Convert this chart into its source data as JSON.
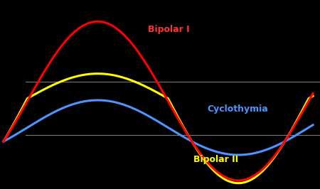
{
  "background_color": "#000000",
  "line_bipolar1_color": "#ff0000",
  "line_bipolar2_color": "#ffff00",
  "line_cyclothymia_color": "#4d94ff",
  "hline_color": "#999999",
  "label_bipolar1": "Bipolar I",
  "label_bipolar2": "Bipolar II",
  "label_cyclothymia": "Cyclothymia",
  "label_bipolar1_color": "#ff3333",
  "label_bipolar2_color": "#ffff00",
  "label_cyclothymia_color": "#4d94ff",
  "label_fontsize": 9,
  "line_width": 2.2,
  "hline_y_upper": 0.3,
  "hline_y_lower": -0.52,
  "ylim_min": -1.35,
  "ylim_max": 1.55
}
